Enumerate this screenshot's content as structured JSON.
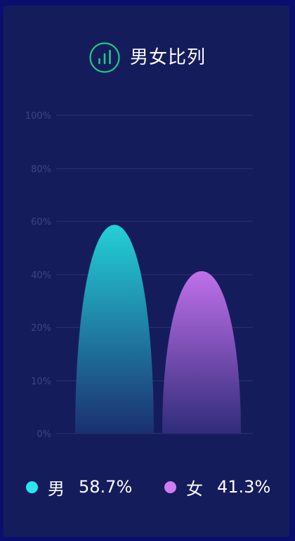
{
  "title": "男女比列",
  "icon": "bar-chart-icon",
  "colors": {
    "background": "#0a0f6e",
    "panel": "#151c5c",
    "grid": "#2c3570",
    "icon": "#1fc98a"
  },
  "chart_data": {
    "type": "bar",
    "shape": "rounded-dome",
    "categories": [
      "男",
      "女"
    ],
    "values": [
      58.7,
      41.3
    ],
    "value_labels": [
      "58.7%",
      "41.3%"
    ],
    "y_ticks": [
      {
        "value": 0,
        "label": "0%"
      },
      {
        "value": 10,
        "label": "10%"
      },
      {
        "value": 20,
        "label": "20%"
      },
      {
        "value": 40,
        "label": "40%"
      },
      {
        "value": 60,
        "label": "60%"
      },
      {
        "value": 80,
        "label": "80%"
      },
      {
        "value": 100,
        "label": "100%"
      }
    ],
    "ylim": [
      0,
      100
    ],
    "grid": true,
    "legend_position": "bottom",
    "series_colors": [
      {
        "top": "#24d0d8",
        "bottom": "#1b2f70",
        "legend": "#29e6ee"
      },
      {
        "top": "#c070ea",
        "bottom": "#302c7a",
        "legend": "#d27cf4"
      }
    ]
  },
  "legend": [
    {
      "name": "男",
      "value": "58.7%"
    },
    {
      "name": "女",
      "value": "41.3%"
    }
  ]
}
